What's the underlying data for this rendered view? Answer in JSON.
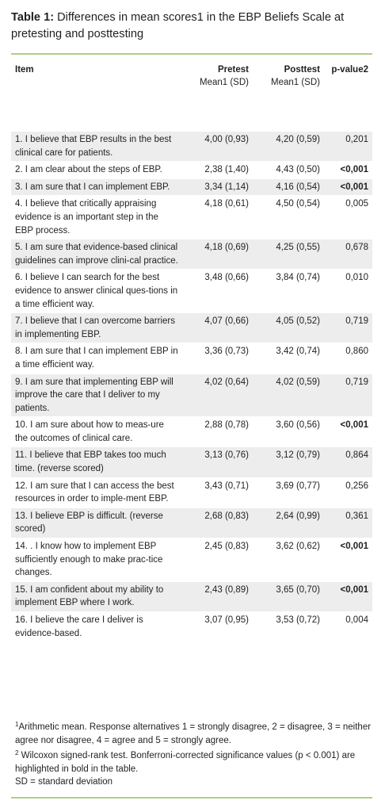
{
  "title": {
    "label": "Table 1:",
    "text": "Differences in mean scores1 in the EBP Beliefs Scale at pretesting and posttesting"
  },
  "headers": {
    "item": "Item",
    "pretest": "Pretest",
    "pretest_sub": "Mean1 (SD)",
    "posttest": "Posttest",
    "posttest_sub": "Mean1 (SD)",
    "pvalue": "p-value2"
  },
  "rows": [
    {
      "item": "1. I believe that EBP results in the best clinical care for patients.",
      "pre": "4,00 (0,93)",
      "post": "4,20 (0,59)",
      "p": "0,201",
      "bold": false,
      "shade": true
    },
    {
      "item": "2. I am clear about the steps of EBP.",
      "pre": "2,38 (1,40)",
      "post": "4,43 (0,50)",
      "p": "<0,001",
      "bold": true,
      "shade": false
    },
    {
      "item": "3. I am sure that I can implement EBP.",
      "pre": "3,34 (1,14)",
      "post": "4,16 (0,54)",
      "p": "<0,001",
      "bold": true,
      "shade": true
    },
    {
      "item": "4. I believe that critically appraising evidence is an important step in the EBP process.",
      "pre": "4,18 (0,61)",
      "post": "4,50 (0,54)",
      "p": "0,005",
      "bold": false,
      "shade": false
    },
    {
      "item": "5. I am sure that evidence-based clinical guidelines can improve clini-cal practice.",
      "pre": "4,18 (0,69)",
      "post": "4,25 (0,55)",
      "p": "0,678",
      "bold": false,
      "shade": true
    },
    {
      "item": "6. I believe I can search for the best evidence to answer clinical ques-tions in a time efficient way.",
      "pre": "3,48 (0,66)",
      "post": "3,84 (0,74)",
      "p": "0,010",
      "bold": false,
      "shade": false
    },
    {
      "item": "7. I believe that I can overcome barriers in implementing EBP.",
      "pre": "4,07 (0,66)",
      "post": "4,05 (0,52)",
      "p": "0,719",
      "bold": false,
      "shade": true
    },
    {
      "item": "8. I am sure that I can implement EBP in a time efficient way.",
      "pre": "3,36 (0,73)",
      "post": "3,42 (0,74)",
      "p": "0,860",
      "bold": false,
      "shade": false
    },
    {
      "item": "9. I am sure that implementing EBP will improve the care that I deliver to my patients.",
      "pre": "4,02 (0,64)",
      "post": "4,02 (0,59)",
      "p": "0,719",
      "bold": false,
      "shade": true
    },
    {
      "item": "10. I am sure about how to meas-ure the outcomes of clinical care.",
      "pre": "2,88 (0,78)",
      "post": "3,60 (0,56)",
      "p": "<0,001",
      "bold": true,
      "shade": false
    },
    {
      "item": "11. I believe that EBP takes too much time. (reverse scored)",
      "pre": "3,13 (0,76)",
      "post": "3,12 (0,79)",
      "p": "0,864",
      "bold": false,
      "shade": true
    },
    {
      "item": "12. I am sure that I can access the best resources in order to imple-ment EBP.",
      "pre": "3,43 (0,71)",
      "post": "3,69 (0,77)",
      "p": "0,256",
      "bold": false,
      "shade": false
    },
    {
      "item": "13. I believe EBP is difficult. (reverse scored)",
      "pre": "2,68 (0,83)",
      "post": "2,64 (0,99)",
      "p": "0,361",
      "bold": false,
      "shade": true
    },
    {
      "item": "14. . I know how to implement EBP sufficiently enough to make prac-tice changes.",
      "pre": "2,45 (0,83)",
      "post": "3,62 (0,62)",
      "p": "<0,001",
      "bold": true,
      "shade": false
    },
    {
      "item": "15. I am confident about my ability to implement EBP where I work.",
      "pre": "2,43 (0,89)",
      "post": "3,65 (0,70)",
      "p": "<0,001",
      "bold": true,
      "shade": true
    },
    {
      "item": "16. I believe the care I deliver is evidence-based.",
      "pre": "3,07 (0,95)",
      "post": "3,53 (0,72)",
      "p": "0,004",
      "bold": false,
      "shade": false
    }
  ],
  "footnotes": {
    "fn1_mark": "1",
    "fn1": "Arithmetic mean. Response alternatives 1 = strongly disagree, 2 = disagree, 3 = neither agree nor disagree, 4 = agree and 5 = strongly agree.",
    "fn2_mark": "2",
    "fn2": " Wilcoxon signed-rank test. Bonferroni-corrected significance values (p < 0.001) are highlighted in bold in the table.",
    "fn3": "SD = standard deviation"
  }
}
